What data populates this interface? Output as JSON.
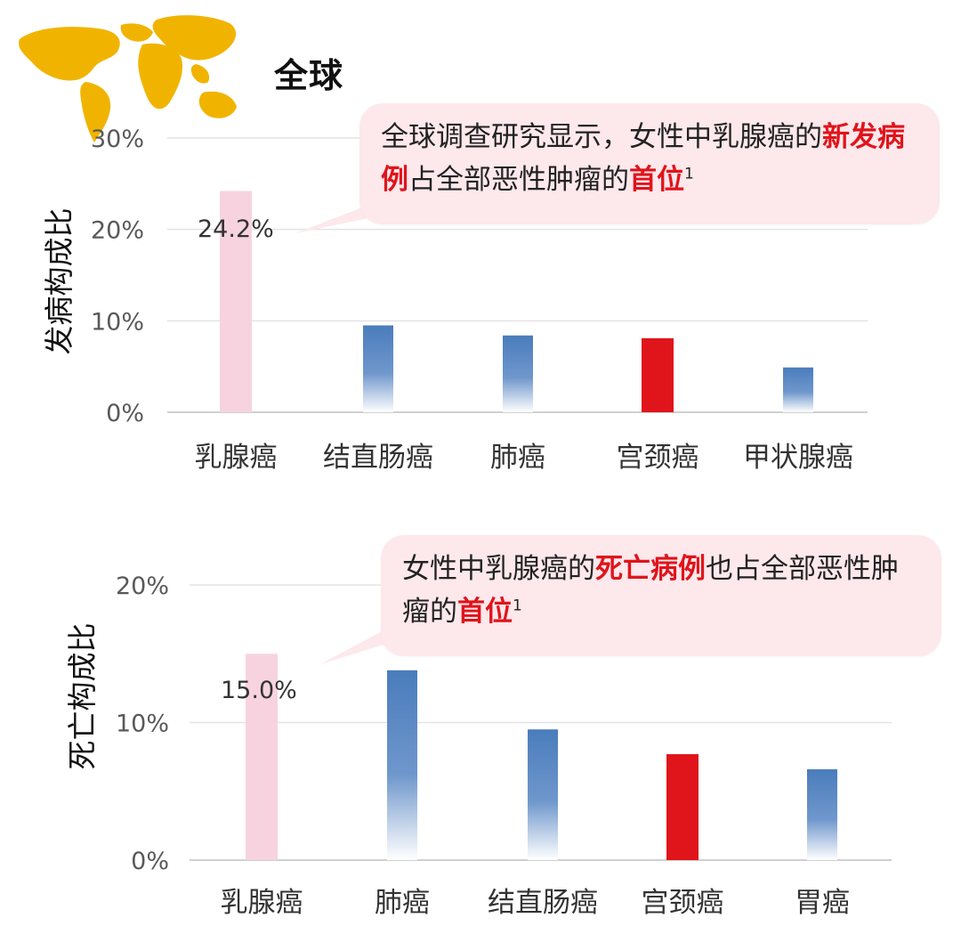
{
  "header": {
    "title": "全球",
    "map_icon": "world-map-icon",
    "map_color": "#f0b400"
  },
  "callouts": [
    {
      "segments": [
        {
          "text": "全球调查研究显示，女性中乳腺癌的",
          "style": "normal"
        },
        {
          "text": "新发病例",
          "style": "highlight"
        },
        {
          "text": "占全部恶性肿瘤的",
          "style": "normal"
        },
        {
          "text": "首位",
          "style": "highlight"
        },
        {
          "text": "1",
          "style": "sup"
        }
      ]
    },
    {
      "segments": [
        {
          "text": "女性中乳腺癌的",
          "style": "normal"
        },
        {
          "text": "死亡病例",
          "style": "highlight"
        },
        {
          "text": "也占全部恶性肿瘤的",
          "style": "normal"
        },
        {
          "text": "首位",
          "style": "highlight"
        },
        {
          "text": "1",
          "style": "sup"
        }
      ]
    }
  ],
  "colors": {
    "highlight_text": "#e0141b",
    "callout_bg": "#fde8ec",
    "pink_bar": "#f7d3df",
    "blue_bar": "#4e7fbe",
    "red_bar": "#e0141b",
    "grid": "#e3e3e3",
    "axis_text": "#595959"
  },
  "chart_data": [
    {
      "type": "bar",
      "title": "",
      "ylabel": "发病构成比",
      "xlabel": "",
      "categories": [
        "乳腺癌",
        "结直肠癌",
        "肺癌",
        "宫颈癌",
        "甲状腺癌"
      ],
      "values": [
        24.2,
        9.5,
        8.4,
        8.1,
        4.9
      ],
      "bar_styles": [
        "pink",
        "blue",
        "blue",
        "red",
        "blue"
      ],
      "data_labels": [
        "24.2%",
        "",
        "",
        "",
        ""
      ],
      "ylim": [
        0,
        30
      ],
      "yticks": [
        0,
        10,
        20,
        30
      ],
      "ytick_labels": [
        "0%",
        "10%",
        "20%",
        "30%"
      ],
      "grid": true,
      "legend": "none"
    },
    {
      "type": "bar",
      "title": "",
      "ylabel": "死亡构成比",
      "xlabel": "",
      "categories": [
        "乳腺癌",
        "肺癌",
        "结直肠癌",
        "宫颈癌",
        "胃癌"
      ],
      "values": [
        15.0,
        13.8,
        9.5,
        7.7,
        6.6
      ],
      "bar_styles": [
        "pink",
        "blue",
        "blue",
        "red",
        "blue"
      ],
      "data_labels": [
        "15.0%",
        "",
        "",
        "",
        ""
      ],
      "ylim": [
        0,
        20
      ],
      "yticks": [
        0,
        10,
        20
      ],
      "ytick_labels": [
        "0%",
        "10%",
        "20%"
      ],
      "grid": true,
      "legend": "none"
    }
  ]
}
